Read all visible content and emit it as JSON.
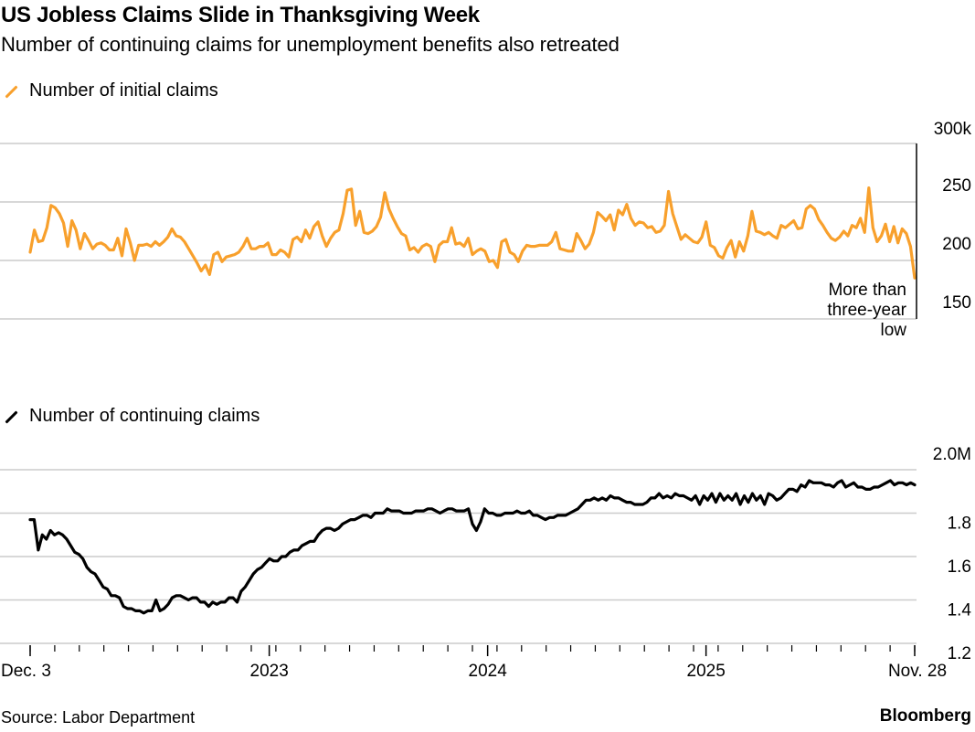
{
  "header": {
    "title": "US Jobless Claims Slide in Thanksgiving Week",
    "subtitle": "Number of continuing claims for unemployment benefits also retreated"
  },
  "footer": {
    "source": "Source: Labor Department",
    "brand": "Bloomberg"
  },
  "colors": {
    "initial_claims": "#f8a02c",
    "continuing_claims": "#000000",
    "gridline": "#cccccc"
  },
  "chart_data": [
    {
      "type": "line",
      "title": "Number of initial claims",
      "legend": [
        "Number of initial claims"
      ],
      "legend_position": "top-left",
      "ylabel": "",
      "xlabel": "",
      "y_unit": "thousands",
      "ylim": [
        150,
        300
      ],
      "yticks": [
        150,
        200,
        250,
        300
      ],
      "ytick_labels": [
        "150",
        "200",
        "250",
        "300k"
      ],
      "grid": true,
      "x_start": "Dec. 3 2022",
      "x_end": "Nov. 28 2025",
      "annotation": {
        "text_lines": [
          "More than",
          "three-year",
          "low"
        ],
        "at": "Nov. 28 2025"
      },
      "series": [
        {
          "name": "Number of initial claims",
          "values": [
            207,
            226,
            216,
            217,
            228,
            247,
            245,
            240,
            232,
            212,
            234,
            226,
            210,
            223,
            217,
            210,
            214,
            215,
            213,
            209,
            209,
            219,
            204,
            227,
            215,
            200,
            213,
            213,
            214,
            212,
            216,
            213,
            216,
            220,
            227,
            221,
            220,
            216,
            210,
            204,
            198,
            191,
            196,
            188,
            205,
            207,
            199,
            203,
            204,
            205,
            207,
            212,
            219,
            210,
            210,
            212,
            212,
            215,
            205,
            205,
            209,
            207,
            203,
            218,
            220,
            216,
            226,
            219,
            229,
            233,
            221,
            212,
            219,
            224,
            226,
            240,
            260,
            261,
            230,
            242,
            224,
            223,
            225,
            229,
            237,
            258,
            244,
            236,
            229,
            223,
            221,
            209,
            211,
            207,
            212,
            214,
            212,
            199,
            213,
            216,
            216,
            228,
            214,
            215,
            212,
            219,
            205,
            208,
            210,
            208,
            199,
            200,
            194,
            216,
            218,
            207,
            205,
            199,
            208,
            213,
            212,
            212,
            213,
            213,
            213,
            216,
            224,
            210,
            209,
            208,
            208,
            223,
            217,
            210,
            214,
            224,
            241,
            238,
            234,
            239,
            226,
            243,
            239,
            248,
            236,
            230,
            233,
            232,
            228,
            229,
            224,
            225,
            230,
            259,
            240,
            229,
            218,
            222,
            219,
            216,
            215,
            220,
            233,
            213,
            211,
            204,
            202,
            211,
            217,
            203,
            216,
            208,
            221,
            242,
            225,
            224,
            222,
            224,
            221,
            219,
            230,
            228,
            231,
            234,
            227,
            228,
            244,
            247,
            244,
            235,
            230,
            224,
            219,
            217,
            220,
            225,
            221,
            230,
            228,
            236,
            224,
            262,
            228,
            216,
            221,
            231,
            216,
            229,
            215,
            227,
            223,
            212,
            185
          ]
        }
      ]
    },
    {
      "type": "line",
      "title": "Number of continuing claims",
      "legend": [
        "Number of continuing claims"
      ],
      "legend_position": "top-left",
      "ylabel": "",
      "xlabel": "",
      "y_unit": "millions",
      "ylim": [
        1.2,
        2.0
      ],
      "yticks": [
        1.2,
        1.4,
        1.6,
        1.8,
        2.0
      ],
      "ytick_labels": [
        "1.2",
        "1.4",
        "1.6",
        "1.8",
        "2.0M"
      ],
      "grid": true,
      "x_start": "Dec. 3 2022",
      "x_end": "Nov. 28 2025",
      "series": [
        {
          "name": "Number of continuing claims",
          "values": [
            1.77,
            1.77,
            1.63,
            1.7,
            1.68,
            1.72,
            1.7,
            1.71,
            1.7,
            1.68,
            1.65,
            1.62,
            1.61,
            1.59,
            1.55,
            1.53,
            1.52,
            1.49,
            1.46,
            1.45,
            1.42,
            1.42,
            1.41,
            1.37,
            1.36,
            1.36,
            1.35,
            1.35,
            1.34,
            1.35,
            1.35,
            1.4,
            1.35,
            1.36,
            1.38,
            1.41,
            1.42,
            1.42,
            1.41,
            1.4,
            1.41,
            1.41,
            1.39,
            1.39,
            1.37,
            1.39,
            1.38,
            1.39,
            1.39,
            1.41,
            1.41,
            1.39,
            1.44,
            1.46,
            1.49,
            1.52,
            1.54,
            1.55,
            1.57,
            1.59,
            1.58,
            1.58,
            1.6,
            1.6,
            1.62,
            1.63,
            1.63,
            1.65,
            1.66,
            1.67,
            1.67,
            1.7,
            1.72,
            1.73,
            1.73,
            1.72,
            1.73,
            1.75,
            1.76,
            1.77,
            1.77,
            1.78,
            1.79,
            1.79,
            1.78,
            1.8,
            1.8,
            1.8,
            1.82,
            1.81,
            1.81,
            1.81,
            1.8,
            1.8,
            1.8,
            1.81,
            1.81,
            1.81,
            1.82,
            1.82,
            1.81,
            1.8,
            1.81,
            1.82,
            1.82,
            1.81,
            1.81,
            1.81,
            1.82,
            1.75,
            1.72,
            1.76,
            1.82,
            1.8,
            1.8,
            1.79,
            1.79,
            1.8,
            1.8,
            1.8,
            1.81,
            1.8,
            1.8,
            1.81,
            1.79,
            1.79,
            1.78,
            1.77,
            1.78,
            1.78,
            1.79,
            1.79,
            1.79,
            1.8,
            1.81,
            1.82,
            1.84,
            1.86,
            1.86,
            1.87,
            1.86,
            1.87,
            1.86,
            1.88,
            1.87,
            1.87,
            1.86,
            1.85,
            1.85,
            1.84,
            1.84,
            1.84,
            1.85,
            1.87,
            1.87,
            1.89,
            1.87,
            1.88,
            1.87,
            1.89,
            1.88,
            1.88,
            1.87,
            1.86,
            1.88,
            1.84,
            1.88,
            1.86,
            1.89,
            1.85,
            1.89,
            1.86,
            1.88,
            1.86,
            1.89,
            1.84,
            1.88,
            1.85,
            1.89,
            1.86,
            1.88,
            1.84,
            1.89,
            1.88,
            1.86,
            1.87,
            1.89,
            1.91,
            1.91,
            1.9,
            1.93,
            1.92,
            1.95,
            1.94,
            1.94,
            1.94,
            1.93,
            1.93,
            1.92,
            1.94,
            1.95,
            1.92,
            1.93,
            1.94,
            1.92,
            1.92,
            1.91,
            1.91,
            1.92,
            1.92,
            1.93,
            1.94,
            1.95,
            1.93,
            1.94,
            1.94,
            1.93,
            1.94,
            1.93
          ]
        }
      ]
    }
  ],
  "xaxis": {
    "tick_labels": [
      "Dec. 3",
      "2023",
      "2024",
      "2025",
      "Nov. 28"
    ],
    "tick_label_positions": [
      0,
      0.2703,
      0.5172,
      0.7641,
      1.0
    ],
    "minor_ticks_per_year": 12
  }
}
